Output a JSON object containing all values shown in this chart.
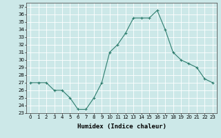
{
  "x": [
    0,
    1,
    2,
    3,
    4,
    5,
    6,
    7,
    8,
    9,
    10,
    11,
    12,
    13,
    14,
    15,
    16,
    17,
    18,
    19,
    20,
    21,
    22,
    23
  ],
  "y": [
    27,
    27,
    27,
    26,
    26,
    25,
    23.5,
    23.5,
    25,
    27,
    31,
    32,
    33.5,
    35.5,
    35.5,
    35.5,
    36.5,
    34,
    31,
    30,
    29.5,
    29,
    27.5,
    27
  ],
  "line_color": "#2e7d6e",
  "marker": "+",
  "marker_color": "#2e7d6e",
  "bg_color": "#cce8e8",
  "grid_color": "#b8d8d8",
  "xlabel": "Humidex (Indice chaleur)",
  "xlim": [
    -0.5,
    23.5
  ],
  "ylim": [
    23,
    37.5
  ],
  "yticks": [
    23,
    24,
    25,
    26,
    27,
    28,
    29,
    30,
    31,
    32,
    33,
    34,
    35,
    36,
    37
  ],
  "xticks": [
    0,
    1,
    2,
    3,
    4,
    5,
    6,
    7,
    8,
    9,
    10,
    11,
    12,
    13,
    14,
    15,
    16,
    17,
    18,
    19,
    20,
    21,
    22,
    23
  ],
  "tick_fontsize": 5.0,
  "xlabel_fontsize": 6.5,
  "linewidth": 0.8,
  "markersize": 3.5
}
